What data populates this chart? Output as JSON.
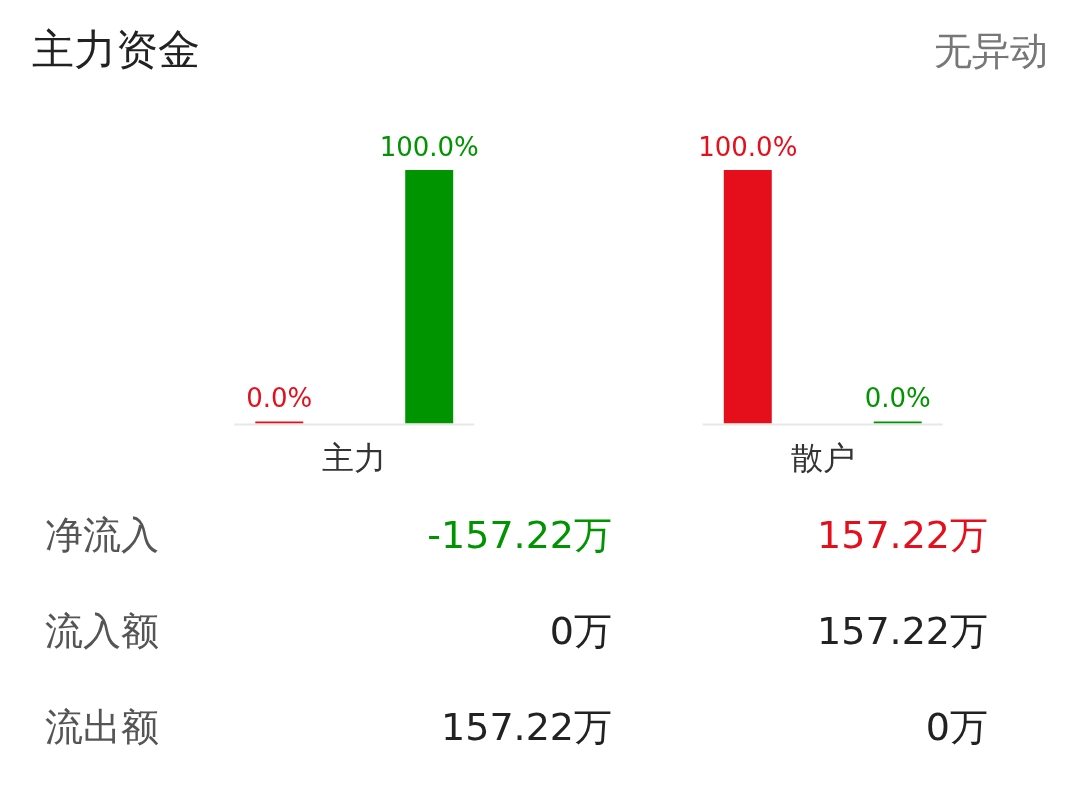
{
  "chart_data": [
    {
      "type": "bar",
      "title": "主力资金",
      "annotations": [
        "无异动"
      ],
      "categories": [
        "主力",
        "散户"
      ],
      "series": [
        {
          "color": "#e50f1c",
          "values": [
            0,
            100
          ],
          "value_labels": [
            "0.0%",
            "100.0%"
          ]
        },
        {
          "color": "#009400",
          "values": [
            100,
            0
          ],
          "value_labels": [
            "100.0%",
            "0.0%"
          ]
        }
      ],
      "legend": false,
      "grid": false
    },
    {
      "type": "other",
      "annotations": [
        "净流入",
        "-157.22万",
        "157.22万",
        "流入额",
        "0万",
        "157.22万",
        "流出额",
        "157.22万",
        "0万"
      ]
    }
  ]
}
